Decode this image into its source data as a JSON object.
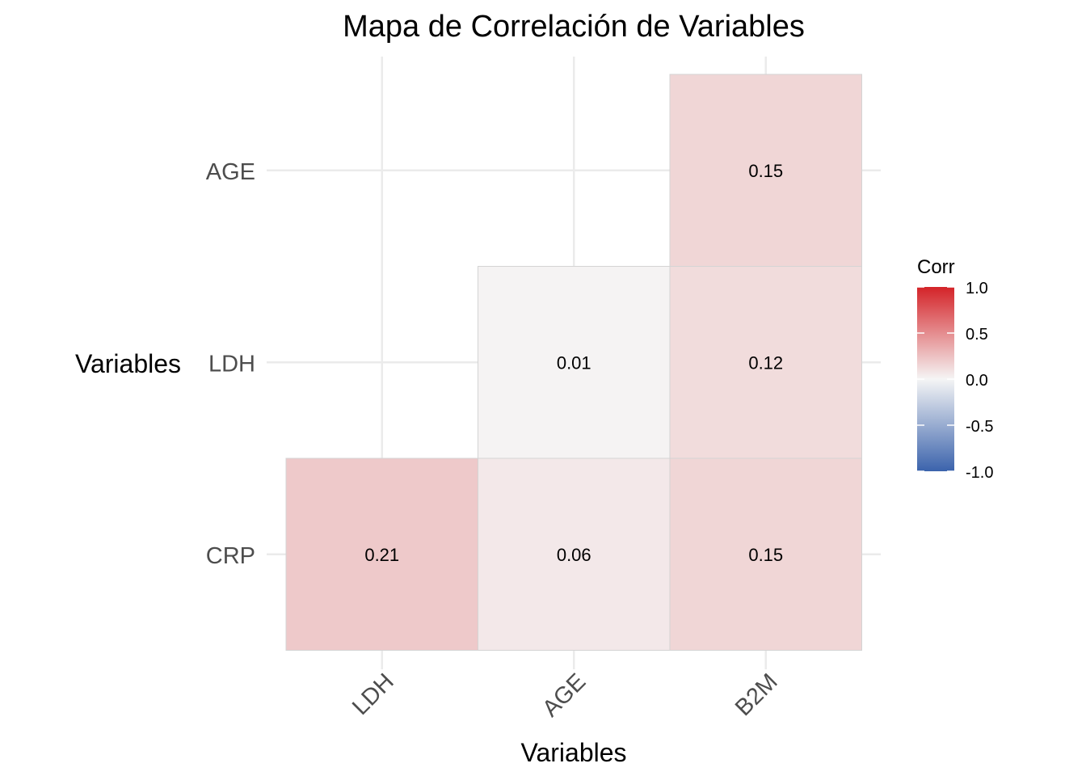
{
  "chart_data": {
    "type": "heatmap",
    "title": "Mapa de Correlación de Variables",
    "xlabel": "Variables",
    "ylabel": "Variables",
    "x_categories": [
      "LDH",
      "AGE",
      "B2M"
    ],
    "y_categories": [
      "CRP",
      "LDH",
      "AGE"
    ],
    "cells": [
      {
        "x": "LDH",
        "y": "CRP",
        "value": 0.21,
        "label": "0.21"
      },
      {
        "x": "AGE",
        "y": "CRP",
        "value": 0.06,
        "label": "0.06"
      },
      {
        "x": "B2M",
        "y": "CRP",
        "value": 0.15,
        "label": "0.15"
      },
      {
        "x": "AGE",
        "y": "LDH",
        "value": 0.01,
        "label": "0.01"
      },
      {
        "x": "B2M",
        "y": "LDH",
        "value": 0.12,
        "label": "0.12"
      },
      {
        "x": "B2M",
        "y": "AGE",
        "value": 0.15,
        "label": "0.15"
      }
    ],
    "legend": {
      "title": "Corr",
      "range": [
        -1,
        1
      ],
      "ticks": [
        "1.0",
        "0.5",
        "0.0",
        "-0.5",
        "-1.0"
      ],
      "tick_values": [
        1.0,
        0.5,
        0.0,
        -0.5,
        -1.0
      ],
      "colors": {
        "low": "#3B63AC",
        "mid": "#F5F5F5",
        "high": "#D42328"
      },
      "placement": "right"
    },
    "grid": true
  }
}
